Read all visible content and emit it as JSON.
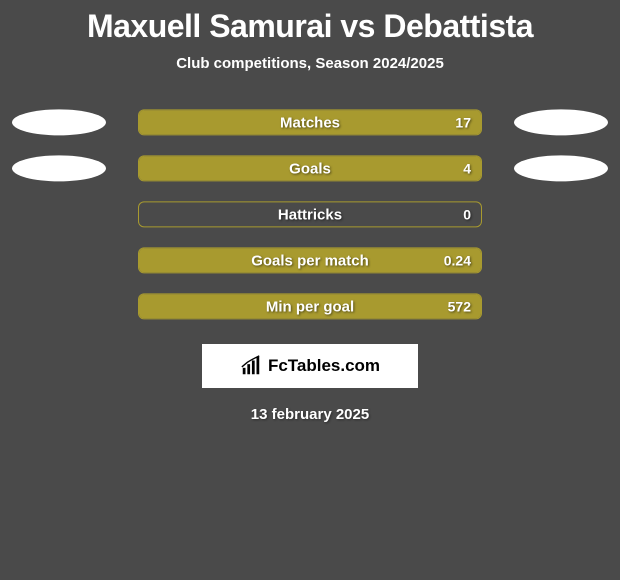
{
  "title": {
    "player1": "Maxuell Samurai",
    "vs": "vs",
    "player2": "Debattista",
    "color": "#ffffff",
    "fontsize": 32
  },
  "subtitle": {
    "text": "Club competitions, Season 2024/2025",
    "color": "#ffffff",
    "fontsize": 15
  },
  "chart": {
    "type": "bar",
    "bar_color": "#a89a2f",
    "bar_border_color": "#a89a2f",
    "background_color": "#4a4a4a",
    "ellipse_color": "#ffffff",
    "label_color": "#ffffff",
    "value_color": "#ffffff",
    "label_fontsize": 15,
    "value_fontsize": 14,
    "rows": [
      {
        "label": "Matches",
        "value": "17",
        "fill_pct": 100,
        "left_ellipse": true,
        "right_ellipse": true
      },
      {
        "label": "Goals",
        "value": "4",
        "fill_pct": 100,
        "left_ellipse": true,
        "right_ellipse": true
      },
      {
        "label": "Hattricks",
        "value": "0",
        "fill_pct": 0,
        "left_ellipse": false,
        "right_ellipse": false
      },
      {
        "label": "Goals per match",
        "value": "0.24",
        "fill_pct": 100,
        "left_ellipse": false,
        "right_ellipse": false
      },
      {
        "label": "Min per goal",
        "value": "572",
        "fill_pct": 100,
        "left_ellipse": false,
        "right_ellipse": false
      }
    ]
  },
  "logo": {
    "text": "FcTables.com",
    "icon_name": "bar-chart-icon",
    "box_bg": "#ffffff",
    "text_color": "#000000"
  },
  "date": {
    "text": "13 february 2025",
    "color": "#ffffff",
    "fontsize": 15
  }
}
